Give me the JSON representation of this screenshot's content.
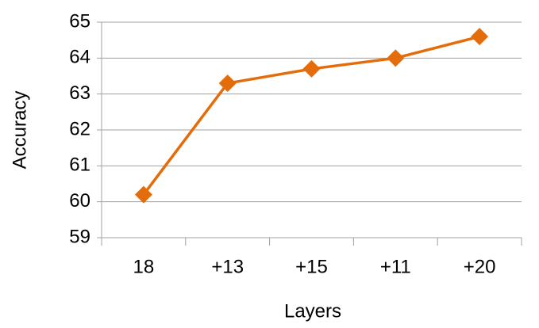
{
  "chart_data": {
    "type": "line",
    "x_label": "Layers",
    "y_label": "Accuracy",
    "categories": [
      "18",
      "+13",
      "+15",
      "+11",
      "+20"
    ],
    "values": [
      60.2,
      63.3,
      63.7,
      64.0,
      64.6
    ],
    "color": "#e46c0a",
    "ylim": [
      59,
      65
    ],
    "yticks": [
      59,
      60,
      61,
      62,
      63,
      64,
      65
    ],
    "grid": true
  }
}
